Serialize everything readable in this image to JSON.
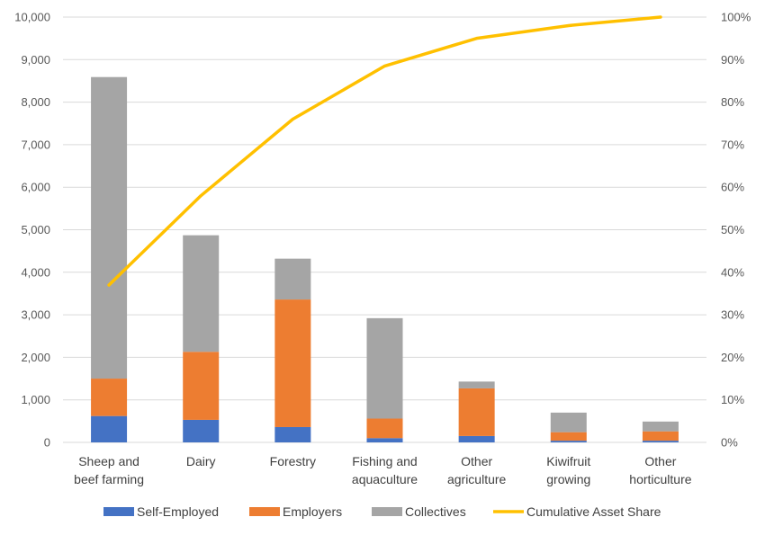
{
  "chart_data": {
    "type": "bar",
    "stacked": true,
    "categories": [
      [
        "Sheep and",
        "beef farming"
      ],
      [
        "Dairy"
      ],
      [
        "Forestry"
      ],
      [
        "Fishing and",
        "aquaculture"
      ],
      [
        "Other",
        "agriculture"
      ],
      [
        "Kiwifruit",
        "growing"
      ],
      [
        "Other",
        "horticulture"
      ]
    ],
    "series": [
      {
        "name": "Self-Employed",
        "color": "#4472C4",
        "values": [
          620,
          530,
          360,
          100,
          150,
          40,
          40
        ]
      },
      {
        "name": "Employers",
        "color": "#ED7D31",
        "values": [
          880,
          1600,
          3000,
          460,
          1120,
          200,
          220
        ]
      },
      {
        "name": "Collectives",
        "color": "#A5A5A5",
        "values": [
          7090,
          2740,
          960,
          2360,
          160,
          460,
          230
        ]
      }
    ],
    "line_series": {
      "name": "Cumulative Asset Share",
      "color": "#FFC000",
      "axis": "right",
      "values": [
        37,
        58,
        76,
        88.5,
        95,
        98,
        100
      ]
    },
    "y_left": {
      "min": 0,
      "max": 10000,
      "step": 1000,
      "tick_labels": [
        "0",
        "1,000",
        "2,000",
        "3,000",
        "4,000",
        "5,000",
        "6,000",
        "7,000",
        "8,000",
        "9,000",
        "10,000"
      ]
    },
    "y_right": {
      "min": 0,
      "max": 100,
      "step": 10,
      "tick_labels": [
        "0%",
        "10%",
        "20%",
        "30%",
        "40%",
        "50%",
        "60%",
        "70%",
        "80%",
        "90%",
        "100%"
      ]
    },
    "title": "",
    "grid": true,
    "legend_position": "bottom"
  }
}
